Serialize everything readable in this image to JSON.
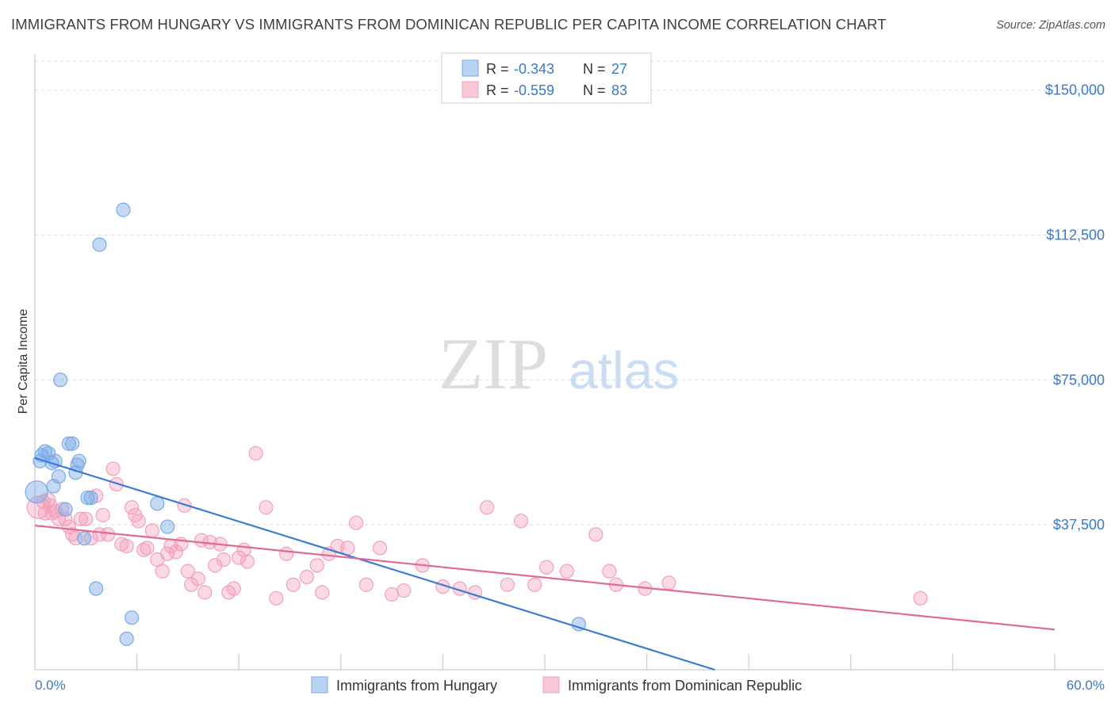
{
  "header": {
    "title": "IMMIGRANTS FROM HUNGARY VS IMMIGRANTS FROM DOMINICAN REPUBLIC PER CAPITA INCOME CORRELATION CHART",
    "source": "Source: ZipAtlas.com"
  },
  "watermark": {
    "zip": "ZIP",
    "atlas": "atlas"
  },
  "legend": {
    "rows": [
      {
        "r_label": "R = ",
        "r_value": "-0.343",
        "n_label": "N = ",
        "n_value": "27"
      },
      {
        "r_label": "R = ",
        "r_value": "-0.559",
        "n_label": "N = ",
        "n_value": "83"
      }
    ]
  },
  "chart_data": {
    "type": "scatter",
    "title": "IMMIGRANTS FROM HUNGARY VS IMMIGRANTS FROM DOMINICAN REPUBLIC PER CAPITA INCOME CORRELATION CHART",
    "xlabel": "",
    "ylabel": "Per Capita Income",
    "xlim": [
      0,
      60
    ],
    "ylim": [
      0,
      157500
    ],
    "x_tick_labels": {
      "min": "0.0%",
      "max": "60.0%"
    },
    "y_ticks": [
      {
        "value": 37500,
        "label": "$37,500"
      },
      {
        "value": 75000,
        "label": "$75,000"
      },
      {
        "value": 112500,
        "label": "$112,500"
      },
      {
        "value": 150000,
        "label": "$150,000"
      }
    ],
    "series": [
      {
        "name": "Immigrants from Hungary",
        "color": "#7aaae6",
        "line_color": "#3a7bd5",
        "trend": {
          "x0": 0,
          "y0": 54800,
          "x1": 40,
          "y1": 0
        },
        "points": [
          [
            0.1,
            46000
          ],
          [
            0.3,
            54000
          ],
          [
            0.4,
            55500
          ],
          [
            0.6,
            56500
          ],
          [
            0.8,
            56000
          ],
          [
            1.0,
            53500
          ],
          [
            1.1,
            47500
          ],
          [
            1.2,
            54000
          ],
          [
            1.4,
            50000
          ],
          [
            1.5,
            75000
          ],
          [
            1.8,
            41500
          ],
          [
            2.0,
            58500
          ],
          [
            2.2,
            58500
          ],
          [
            2.4,
            51000
          ],
          [
            2.5,
            53000
          ],
          [
            2.6,
            54000
          ],
          [
            2.9,
            34000
          ],
          [
            3.1,
            44500
          ],
          [
            3.3,
            44500
          ],
          [
            3.6,
            21000
          ],
          [
            3.8,
            110000
          ],
          [
            5.2,
            119000
          ],
          [
            5.4,
            8000
          ],
          [
            5.7,
            13500
          ],
          [
            7.2,
            43000
          ],
          [
            7.8,
            37000
          ],
          [
            32.0,
            11800
          ]
        ]
      },
      {
        "name": "Immigrants from Dominican Republic",
        "color": "#f2a0bb",
        "line_color": "#e06a94",
        "trend": {
          "x0": 0,
          "y0": 37300,
          "x1": 60,
          "y1": 10400
        },
        "points": [
          [
            0.2,
            42000
          ],
          [
            0.5,
            43500
          ],
          [
            0.8,
            44000
          ],
          [
            0.9,
            42500
          ],
          [
            1.0,
            40500
          ],
          [
            1.2,
            41000
          ],
          [
            1.4,
            39000
          ],
          [
            1.6,
            41500
          ],
          [
            1.8,
            39000
          ],
          [
            2.0,
            37000
          ],
          [
            2.2,
            35000
          ],
          [
            2.4,
            34000
          ],
          [
            2.7,
            39000
          ],
          [
            3.0,
            39000
          ],
          [
            3.3,
            34000
          ],
          [
            3.6,
            45000
          ],
          [
            3.8,
            35000
          ],
          [
            4.0,
            40000
          ],
          [
            4.3,
            35000
          ],
          [
            4.6,
            52000
          ],
          [
            4.8,
            48000
          ],
          [
            5.1,
            32500
          ],
          [
            5.4,
            32000
          ],
          [
            5.7,
            42000
          ],
          [
            5.9,
            40000
          ],
          [
            6.1,
            38500
          ],
          [
            6.4,
            31000
          ],
          [
            6.6,
            31500
          ],
          [
            6.9,
            36000
          ],
          [
            7.2,
            28500
          ],
          [
            7.5,
            25500
          ],
          [
            7.8,
            30000
          ],
          [
            8.0,
            32000
          ],
          [
            8.3,
            30500
          ],
          [
            8.6,
            32500
          ],
          [
            8.8,
            42500
          ],
          [
            9.0,
            25500
          ],
          [
            9.2,
            22000
          ],
          [
            9.6,
            23500
          ],
          [
            9.8,
            33500
          ],
          [
            10.0,
            20000
          ],
          [
            10.3,
            33000
          ],
          [
            10.6,
            27000
          ],
          [
            10.9,
            32500
          ],
          [
            11.1,
            28500
          ],
          [
            11.4,
            20000
          ],
          [
            11.7,
            21000
          ],
          [
            12.0,
            29000
          ],
          [
            12.3,
            31000
          ],
          [
            12.5,
            28000
          ],
          [
            13.0,
            56000
          ],
          [
            13.6,
            42000
          ],
          [
            14.2,
            18500
          ],
          [
            14.8,
            30000
          ],
          [
            15.2,
            22000
          ],
          [
            16.0,
            24000
          ],
          [
            16.6,
            27000
          ],
          [
            16.9,
            20000
          ],
          [
            17.3,
            30000
          ],
          [
            17.8,
            32000
          ],
          [
            18.4,
            31500
          ],
          [
            18.9,
            38000
          ],
          [
            19.5,
            22000
          ],
          [
            20.3,
            31500
          ],
          [
            21.0,
            19500
          ],
          [
            21.7,
            20500
          ],
          [
            22.8,
            27000
          ],
          [
            24.0,
            21500
          ],
          [
            25.0,
            21000
          ],
          [
            25.9,
            20000
          ],
          [
            26.6,
            42000
          ],
          [
            27.8,
            22000
          ],
          [
            28.6,
            38500
          ],
          [
            29.4,
            22000
          ],
          [
            30.1,
            26500
          ],
          [
            31.3,
            25500
          ],
          [
            33.0,
            35000
          ],
          [
            33.8,
            25500
          ],
          [
            34.2,
            22000
          ],
          [
            35.9,
            21000
          ],
          [
            37.3,
            22500
          ],
          [
            52.1,
            18500
          ],
          [
            0.6,
            40500
          ]
        ]
      }
    ]
  }
}
